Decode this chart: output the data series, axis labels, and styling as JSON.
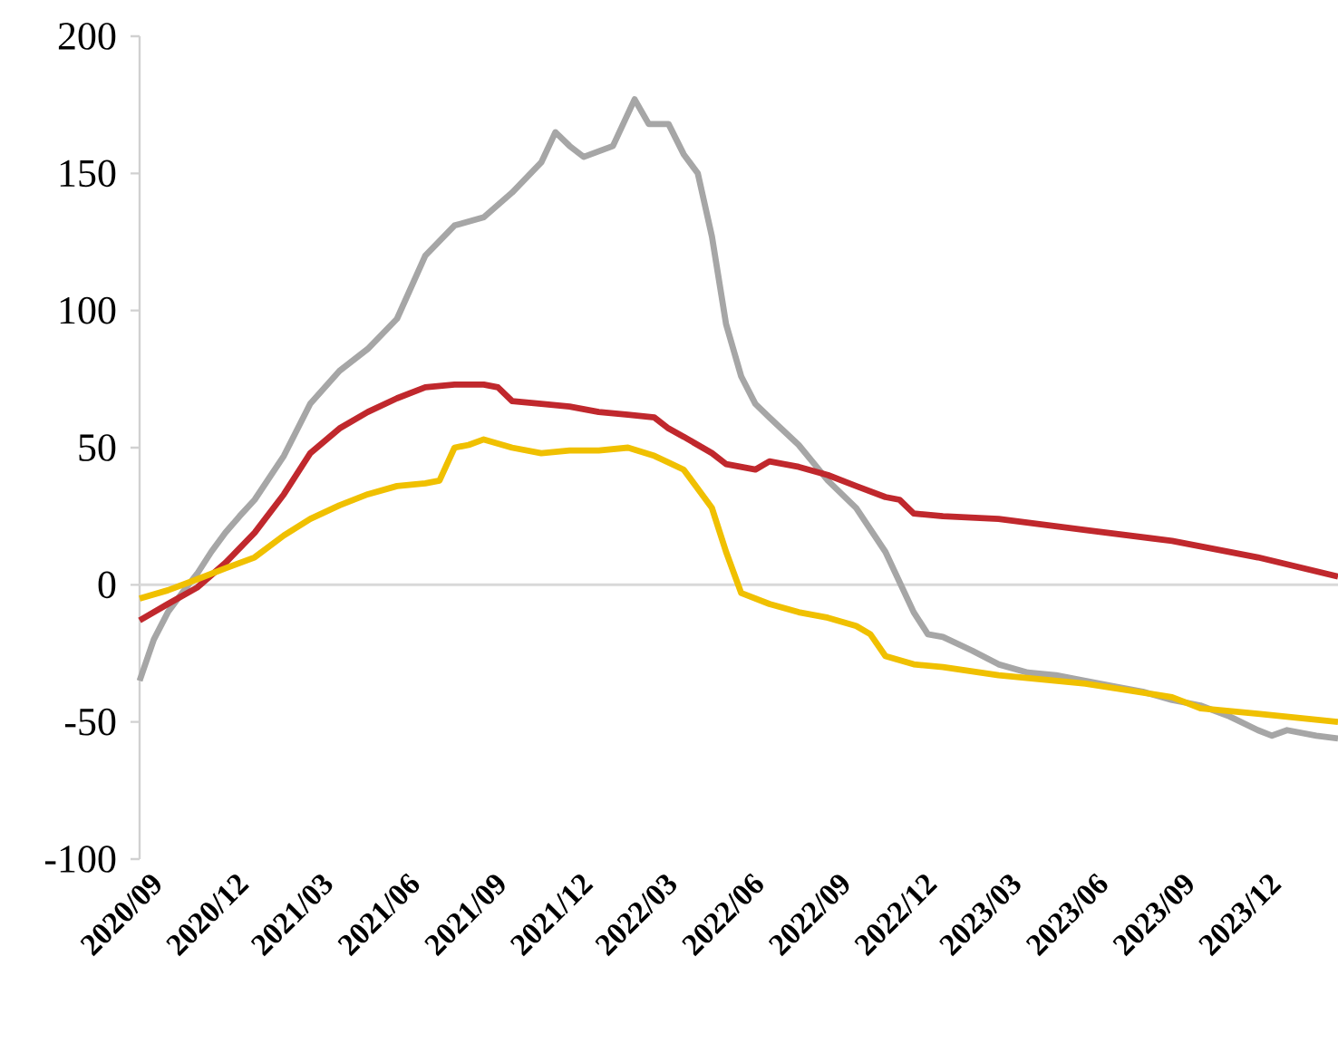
{
  "chart_data": {
    "type": "line",
    "xlim": [
      "2020-09-01",
      "2024-02-24"
    ],
    "ylim": [
      -100,
      200
    ],
    "yticks": [
      -100,
      -50,
      0,
      50,
      100,
      150,
      200
    ],
    "xticks": [
      {
        "value": "2020-09",
        "label": "2020/09"
      },
      {
        "value": "2020-12",
        "label": "2020/12"
      },
      {
        "value": "2021-03",
        "label": "2021/03"
      },
      {
        "value": "2021-06",
        "label": "2021/06"
      },
      {
        "value": "2021-09",
        "label": "2021/09"
      },
      {
        "value": "2021-12",
        "label": "2021/12"
      },
      {
        "value": "2022-03",
        "label": "2022/03"
      },
      {
        "value": "2022-06",
        "label": "2022/06"
      },
      {
        "value": "2022-09",
        "label": "2022/09"
      },
      {
        "value": "2022-12",
        "label": "2022/12"
      },
      {
        "value": "2023-03",
        "label": "2023/03"
      },
      {
        "value": "2023-06",
        "label": "2023/06"
      },
      {
        "value": "2023-09",
        "label": "2023/09"
      },
      {
        "value": "2023-12",
        "label": "2023/12"
      }
    ],
    "series": [
      {
        "color": "#a6a6a6",
        "x": [
          "2020-09-01",
          "2020-09-16",
          "2020-10-01",
          "2020-10-16",
          "2020-11-01",
          "2020-11-16",
          "2020-12-01",
          "2020-12-16",
          "2021-01-01",
          "2021-02-01",
          "2021-03-01",
          "2021-04-01",
          "2021-05-01",
          "2021-06-01",
          "2021-07-01",
          "2021-08-01",
          "2021-09-01",
          "2021-10-01",
          "2021-11-01",
          "2021-11-16",
          "2021-12-01",
          "2021-12-16",
          "2022-01-16",
          "2022-02-08",
          "2022-02-23",
          "2022-03-16",
          "2022-04-01",
          "2022-04-16",
          "2022-05-01",
          "2022-05-16",
          "2022-06-01",
          "2022-06-16",
          "2022-07-01",
          "2022-08-01",
          "2022-09-01",
          "2022-10-01",
          "2022-11-01",
          "2022-12-01",
          "2022-12-16",
          "2023-01-01",
          "2023-02-01",
          "2023-03-01",
          "2023-04-01",
          "2023-05-01",
          "2023-06-01",
          "2023-07-01",
          "2023-08-01",
          "2023-09-01",
          "2023-10-01",
          "2023-11-01",
          "2023-12-01",
          "2023-12-16",
          "2024-01-01",
          "2024-02-01",
          "2024-02-24"
        ],
        "values": [
          -35,
          -20,
          -10,
          -3,
          4,
          12,
          19,
          25,
          31,
          47,
          66,
          78,
          86,
          97,
          120,
          131,
          134,
          143,
          154,
          165,
          160,
          156,
          160,
          177,
          168,
          168,
          157,
          150,
          127,
          95,
          76,
          66,
          61,
          51,
          38,
          28,
          12,
          -10,
          -18,
          -19,
          -24,
          -29,
          -32,
          -33,
          -35,
          -37,
          -39,
          -42,
          -44,
          -48,
          -53,
          -55,
          -53,
          -55,
          -56
        ]
      },
      {
        "color": "#c0282d",
        "x": [
          "2020-09-01",
          "2020-10-01",
          "2020-11-01",
          "2020-12-01",
          "2021-01-01",
          "2021-02-01",
          "2021-03-01",
          "2021-04-01",
          "2021-05-01",
          "2021-06-01",
          "2021-07-01",
          "2021-08-01",
          "2021-09-01",
          "2021-09-16",
          "2021-10-01",
          "2021-11-01",
          "2021-12-01",
          "2022-01-01",
          "2022-02-01",
          "2022-03-01",
          "2022-03-16",
          "2022-04-01",
          "2022-05-01",
          "2022-05-16",
          "2022-06-16",
          "2022-07-01",
          "2022-08-01",
          "2022-09-01",
          "2022-10-01",
          "2022-11-01",
          "2022-11-16",
          "2022-12-01",
          "2023-01-01",
          "2023-03-01",
          "2023-06-01",
          "2023-09-01",
          "2023-12-01",
          "2024-02-24"
        ],
        "values": [
          -13,
          -7,
          -1,
          8,
          19,
          33,
          48,
          57,
          63,
          68,
          72,
          73,
          73,
          72,
          67,
          66,
          65,
          63,
          62,
          61,
          57,
          54,
          48,
          44,
          42,
          45,
          43,
          40,
          36,
          32,
          31,
          26,
          25,
          24,
          20,
          16,
          10,
          3
        ]
      },
      {
        "color": "#f0c000",
        "x": [
          "2020-09-01",
          "2020-10-01",
          "2020-11-01",
          "2020-12-01",
          "2021-01-01",
          "2021-02-01",
          "2021-03-01",
          "2021-04-01",
          "2021-05-01",
          "2021-06-01",
          "2021-07-01",
          "2021-07-16",
          "2021-08-01",
          "2021-08-16",
          "2021-09-01",
          "2021-10-01",
          "2021-11-01",
          "2021-12-01",
          "2022-01-01",
          "2022-02-01",
          "2022-03-01",
          "2022-04-01",
          "2022-05-01",
          "2022-05-16",
          "2022-06-01",
          "2022-07-01",
          "2022-08-01",
          "2022-09-01",
          "2022-10-01",
          "2022-10-16",
          "2022-11-01",
          "2022-12-01",
          "2023-01-01",
          "2023-03-01",
          "2023-06-01",
          "2023-09-01",
          "2023-10-01",
          "2023-12-01",
          "2024-02-24"
        ],
        "values": [
          -5,
          -2,
          2,
          6,
          10,
          18,
          24,
          29,
          33,
          36,
          37,
          38,
          50,
          51,
          53,
          50,
          48,
          49,
          49,
          50,
          47,
          42,
          28,
          12,
          -3,
          -7,
          -10,
          -12,
          -15,
          -18,
          -26,
          -29,
          -30,
          -33,
          -36,
          -41,
          -45,
          -47,
          -50
        ]
      }
    ]
  }
}
